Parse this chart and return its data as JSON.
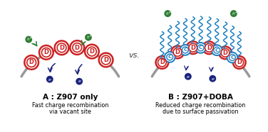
{
  "bg_color": "#ffffff",
  "title_A": "A : Z907 only",
  "subtitle_A1": "Fast charge recombination",
  "subtitle_A2": "via vacant site",
  "title_B": "B : Z907+DOBA",
  "subtitle_B1": "Reduced charge recombination",
  "subtitle_B2": "due to surface passivation",
  "vs_text": "vs.",
  "surface_color": "#999999",
  "D_ring_color": "#cc2222",
  "D_text_color": "#cc2222",
  "e_color": "#1a237e",
  "h_color": "#2e7d32",
  "wavy_color": "#1a7fc1",
  "C_ring_color": "#1a7fc1",
  "C_text_color": "#1a7fc1",
  "arrow_dark": "#1a237e",
  "arrow_green": "#2e7d32"
}
